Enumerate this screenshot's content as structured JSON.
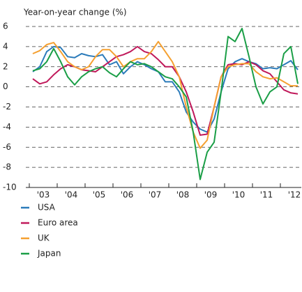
{
  "chart_data": {
    "type": "line",
    "y_label": "Year-on-year change (%)",
    "categories": [
      "'03",
      null,
      null,
      null,
      "'04",
      null,
      null,
      null,
      "'05",
      null,
      null,
      null,
      "'06",
      null,
      null,
      null,
      "'07",
      null,
      null,
      null,
      "'08",
      null,
      null,
      null,
      "'09",
      null,
      null,
      null,
      "'10",
      null,
      null,
      null,
      "'11",
      null,
      null,
      null,
      "'12",
      null,
      null
    ],
    "series": [
      {
        "name": "USA",
        "color": "#2b7bba",
        "values": [
          1.5,
          2.0,
          3.5,
          4.0,
          3.9,
          3.0,
          2.9,
          3.3,
          3.1,
          3.0,
          3.2,
          2.2,
          2.5,
          1.3,
          2.0,
          2.5,
          2.2,
          1.8,
          1.5,
          0.5,
          0.5,
          -0.5,
          -2.5,
          -3.5,
          -4.2,
          -4.5,
          -3.2,
          -0.5,
          1.8,
          2.5,
          2.8,
          2.5,
          2.3,
          1.8,
          1.9,
          1.8,
          2.2,
          2.6,
          1.7
        ]
      },
      {
        "name": "Euro area",
        "color": "#c0185a",
        "values": [
          0.8,
          0.3,
          0.5,
          1.2,
          1.8,
          2.2,
          2.0,
          1.7,
          1.6,
          1.5,
          2.0,
          2.5,
          3.0,
          3.2,
          3.5,
          4.0,
          3.5,
          3.3,
          2.7,
          2.0,
          2.0,
          1.0,
          -0.5,
          -2.5,
          -4.8,
          -4.7,
          -2.0,
          1.0,
          2.2,
          2.3,
          2.2,
          2.5,
          2.2,
          1.6,
          1.3,
          0.5,
          -0.3,
          -0.6,
          -0.7
        ]
      },
      {
        "name": "UK",
        "color": "#f5a030",
        "values": [
          3.3,
          3.6,
          4.2,
          4.4,
          3.5,
          2.5,
          2.0,
          1.7,
          2.0,
          3.0,
          3.7,
          3.7,
          3.0,
          2.0,
          2.5,
          2.8,
          2.8,
          3.5,
          4.5,
          3.5,
          2.5,
          1.0,
          -2.0,
          -4.5,
          -6.1,
          -5.3,
          -2.0,
          1.0,
          2.0,
          2.2,
          2.3,
          2.3,
          1.5,
          1.0,
          0.8,
          0.9,
          0.5,
          0.1,
          0.1
        ]
      },
      {
        "name": "Japan",
        "color": "#1a9e46",
        "values": [
          1.6,
          1.8,
          2.5,
          3.8,
          2.5,
          1.0,
          0.2,
          1.0,
          1.5,
          1.8,
          2.0,
          1.4,
          1.0,
          1.8,
          2.5,
          2.2,
          2.3,
          2.0,
          1.5,
          1.0,
          0.8,
          0.0,
          -1.0,
          -4.5,
          -9.2,
          -6.5,
          -5.5,
          -0.5,
          5.0,
          4.5,
          5.8,
          3.0,
          0.0,
          -1.7,
          -0.5,
          0.0,
          3.3,
          4.0,
          0.3
        ]
      }
    ],
    "ylim": [
      -10,
      6
    ],
    "yticks": [
      -10,
      -8,
      -6,
      -4,
      -2,
      0,
      2,
      4,
      6
    ],
    "grid": true
  }
}
